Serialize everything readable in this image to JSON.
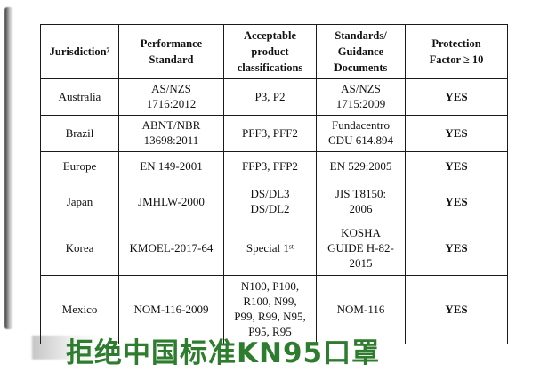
{
  "page": {
    "caption": "拒绝中国标准KN95口罩",
    "caption_color": "#2e7d2e"
  },
  "table": {
    "headers": [
      "Jurisdiction⁷",
      "Performance\nStandard",
      "Acceptable\nproduct\nclassifications",
      "Standards/\nGuidance\nDocuments",
      "Protection\nFactor ≥ 10"
    ],
    "rows": [
      {
        "cells": [
          "Australia",
          "AS/NZS\n1716:2012",
          "P3, P2",
          "AS/NZS\n1715:2009",
          "YES"
        ]
      },
      {
        "cells": [
          "Brazil",
          "ABNT/NBR\n13698:2011",
          "PFF3, PFF2",
          "Fundacentro\nCDU 614.894",
          "YES"
        ]
      },
      {
        "cells": [
          "Europe",
          "EN 149-2001",
          "FFP3, FFP2",
          "EN 529:2005",
          "YES"
        ]
      },
      {
        "cells": [
          "Japan",
          "JMHLW-2000",
          "DS/DL3\nDS/DL2",
          "JIS T8150:\n2006",
          "YES"
        ]
      },
      {
        "cells": [
          "Korea",
          "KMOEL-2017-64",
          "Special 1ˢᵗ",
          "KOSHA\nGUIDE H-82-\n2015",
          "YES"
        ]
      },
      {
        "cells": [
          "Mexico",
          "NOM-116-2009",
          "N100, P100,\nR100, N99,\nP99, R99, N95,\nP95, R95",
          "NOM-116",
          "YES"
        ]
      }
    ]
  }
}
